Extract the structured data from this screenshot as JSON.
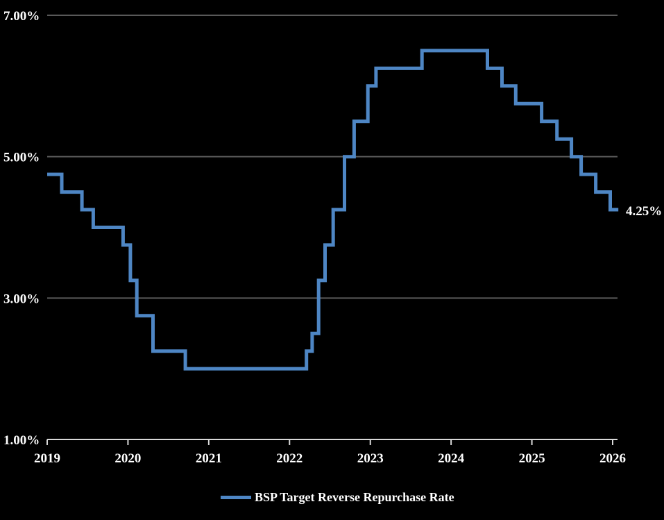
{
  "background_color": "#000000",
  "text_color": "#FFFFFF",
  "chart_data": {
    "type": "line",
    "subtype": "step",
    "title": "",
    "legend": {
      "position": "bottom",
      "entries": [
        "BSP Target Reverse Repurchase Rate"
      ]
    },
    "series": [
      {
        "name": "BSP Target Reverse Repurchase Rate",
        "color": "#4E86C4",
        "points": [
          [
            2019.0,
            4.75
          ],
          [
            2019.18,
            4.5
          ],
          [
            2019.43,
            4.25
          ],
          [
            2019.57,
            4.0
          ],
          [
            2019.94,
            3.75
          ],
          [
            2020.03,
            3.25
          ],
          [
            2020.11,
            2.75
          ],
          [
            2020.31,
            2.25
          ],
          [
            2020.71,
            2.0
          ],
          [
            2022.21,
            2.25
          ],
          [
            2022.28,
            2.5
          ],
          [
            2022.36,
            3.25
          ],
          [
            2022.44,
            3.75
          ],
          [
            2022.54,
            4.25
          ],
          [
            2022.68,
            5.0
          ],
          [
            2022.8,
            5.5
          ],
          [
            2022.97,
            6.0
          ],
          [
            2023.07,
            6.25
          ],
          [
            2023.64,
            6.5
          ],
          [
            2024.45,
            6.25
          ],
          [
            2024.63,
            6.0
          ],
          [
            2024.8,
            5.75
          ],
          [
            2025.12,
            5.5
          ],
          [
            2025.31,
            5.25
          ],
          [
            2025.49,
            5.0
          ],
          [
            2025.61,
            4.75
          ],
          [
            2025.79,
            4.5
          ],
          [
            2025.97,
            4.25
          ]
        ],
        "x_end": 2026.07,
        "last_value": 4.25
      }
    ],
    "x_axis": {
      "ticks": [
        2019,
        2020,
        2021,
        2022,
        2023,
        2024,
        2025,
        2026
      ],
      "labels": [
        "2019",
        "2020",
        "2021",
        "2022",
        "2023",
        "2024",
        "2025",
        "2026"
      ],
      "range": [
        2019,
        2026.1
      ]
    },
    "y_axis": {
      "unit": "%",
      "range": [
        1,
        7
      ],
      "gridline_values": [
        7,
        5,
        3
      ],
      "baseline_value": 1,
      "labels": [
        {
          "value": 7,
          "text": "7.00%"
        },
        {
          "value": 5,
          "text": "5.00%"
        },
        {
          "value": 3,
          "text": "3.00%"
        },
        {
          "value": 1,
          "text": "1.00%"
        }
      ]
    },
    "end_label": "4.25%",
    "colors": {
      "line": "#4E86C4",
      "gridline": "#595959",
      "axis": "#D9D9D9",
      "label": "#FFFFFF"
    },
    "grid": "horizontal-only"
  }
}
